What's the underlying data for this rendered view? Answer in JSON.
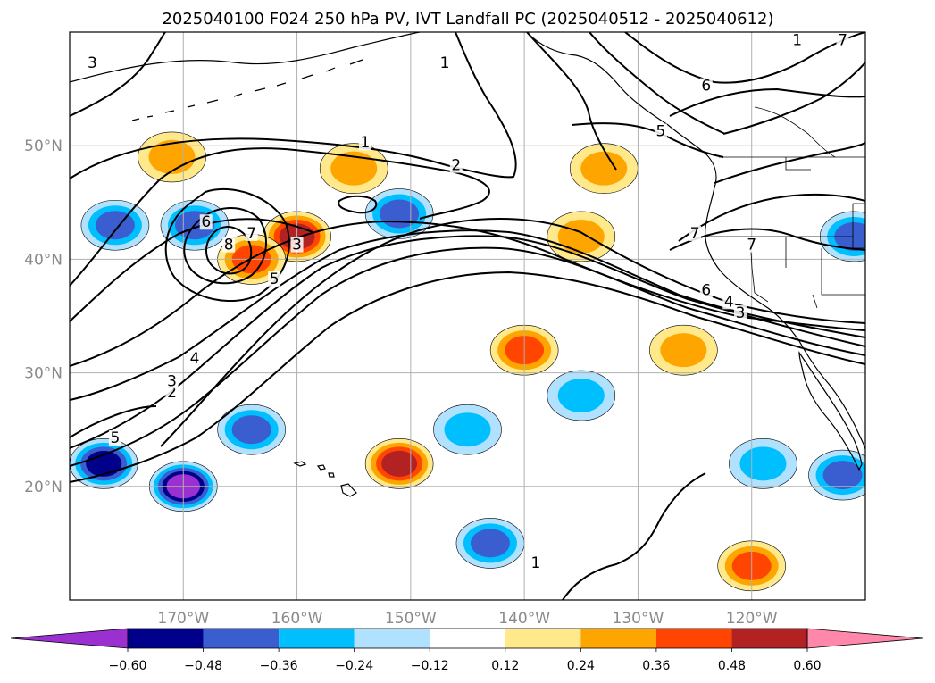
{
  "title": "2025040100 F024 250 hPa PV, IVT Landfall PC (2025040512 - 2025040612)",
  "chart_data": {
    "type": "heatmap",
    "title": "2025040100 F024 250 hPa PV, IVT Landfall PC (2025040512 - 2025040612)",
    "projection": "map",
    "xlim": [
      -180,
      -110
    ],
    "ylim": [
      10,
      60
    ],
    "grid": true,
    "x_ticks": [
      {
        "value": -170,
        "label": "170°W"
      },
      {
        "value": -160,
        "label": "160°W"
      },
      {
        "value": -150,
        "label": "150°W"
      },
      {
        "value": -140,
        "label": "140°W"
      },
      {
        "value": -130,
        "label": "130°W"
      },
      {
        "value": -120,
        "label": "120°W"
      }
    ],
    "y_ticks": [
      {
        "value": 20,
        "label": "20°N"
      },
      {
        "value": 30,
        "label": "30°N"
      },
      {
        "value": 40,
        "label": "40°N"
      },
      {
        "value": 50,
        "label": "50°N"
      }
    ],
    "colorbar": {
      "orientation": "horizontal",
      "extend": "both",
      "levels": [
        -0.6,
        -0.48,
        -0.36,
        -0.24,
        -0.12,
        0.12,
        0.24,
        0.36,
        0.48,
        0.6
      ],
      "tick_labels": [
        "−0.60",
        "−0.48",
        "−0.36",
        "−0.24",
        "−0.12",
        "0.12",
        "0.24",
        "0.36",
        "0.48",
        "0.60"
      ],
      "colors": [
        "#9b30d0",
        "#00008b",
        "#3a5ed0",
        "#00bfff",
        "#b0e2ff",
        "#ffffff",
        "#ffe98a",
        "#ffa500",
        "#ff4500",
        "#b22222",
        "#ff88aa"
      ]
    },
    "contour_labels": [
      {
        "text": "1",
        "lon": -147,
        "lat": 57
      },
      {
        "text": "1",
        "lon": -154,
        "lat": 50
      },
      {
        "text": "1",
        "lon": -116,
        "lat": 59
      },
      {
        "text": "1",
        "lon": -139,
        "lat": 13
      },
      {
        "text": "2",
        "lon": -146,
        "lat": 48
      },
      {
        "text": "2",
        "lon": -171,
        "lat": 28
      },
      {
        "text": "3",
        "lon": -171,
        "lat": 29
      },
      {
        "text": "3",
        "lon": -160,
        "lat": 41
      },
      {
        "text": "3",
        "lon": -178,
        "lat": 57
      },
      {
        "text": "3",
        "lon": -121,
        "lat": 35
      },
      {
        "text": "4",
        "lon": -169,
        "lat": 31
      },
      {
        "text": "4",
        "lon": -122,
        "lat": 36
      },
      {
        "text": "5",
        "lon": -162,
        "lat": 38
      },
      {
        "text": "5",
        "lon": -176,
        "lat": 24
      },
      {
        "text": "5",
        "lon": -128,
        "lat": 51
      },
      {
        "text": "6",
        "lon": -168,
        "lat": 43
      },
      {
        "text": "6",
        "lon": -124,
        "lat": 55
      },
      {
        "text": "6",
        "lon": -124,
        "lat": 37
      },
      {
        "text": "7",
        "lon": -164,
        "lat": 42
      },
      {
        "text": "7",
        "lon": -112,
        "lat": 59
      },
      {
        "text": "7",
        "lon": -125,
        "lat": 42
      },
      {
        "text": "7",
        "lon": -120,
        "lat": 41
      },
      {
        "text": "8",
        "lon": -166,
        "lat": 41
      }
    ],
    "pc_field_blobs": [
      {
        "lon": -171,
        "lat": 49,
        "value": 0.24
      },
      {
        "lon": -160,
        "lat": 42,
        "value": 0.48
      },
      {
        "lon": -164,
        "lat": 40,
        "value": 0.36
      },
      {
        "lon": -155,
        "lat": 48,
        "value": 0.24
      },
      {
        "lon": -140,
        "lat": 32,
        "value": 0.36
      },
      {
        "lon": -151,
        "lat": 22,
        "value": 0.48
      },
      {
        "lon": -133,
        "lat": 48,
        "value": 0.24
      },
      {
        "lon": -135,
        "lat": 42,
        "value": 0.24
      },
      {
        "lon": -126,
        "lat": 32,
        "value": 0.24
      },
      {
        "lon": -120,
        "lat": 13,
        "value": 0.36
      },
      {
        "lon": -176,
        "lat": 43,
        "value": -0.36
      },
      {
        "lon": -169,
        "lat": 43,
        "value": -0.36
      },
      {
        "lon": -151,
        "lat": 44,
        "value": -0.36
      },
      {
        "lon": -177,
        "lat": 22,
        "value": -0.48
      },
      {
        "lon": -170,
        "lat": 20,
        "value": -0.6
      },
      {
        "lon": -164,
        "lat": 25,
        "value": -0.36
      },
      {
        "lon": -143,
        "lat": 15,
        "value": -0.36
      },
      {
        "lon": -145,
        "lat": 25,
        "value": -0.24
      },
      {
        "lon": -135,
        "lat": 28,
        "value": -0.24
      },
      {
        "lon": -119,
        "lat": 22,
        "value": -0.24
      },
      {
        "lon": -112,
        "lat": 21,
        "value": -0.36
      },
      {
        "lon": -111,
        "lat": 42,
        "value": -0.36
      }
    ]
  }
}
